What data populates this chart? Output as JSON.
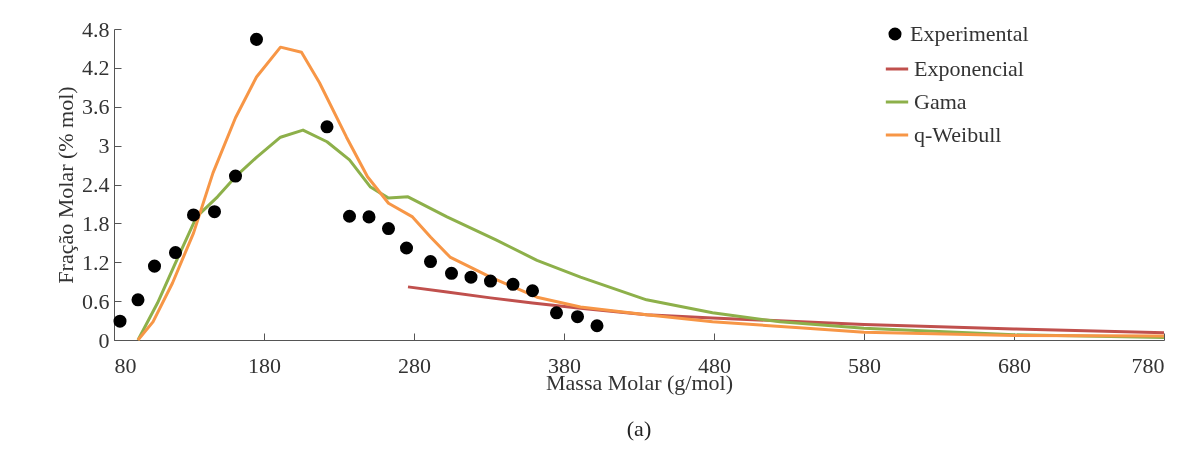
{
  "chart_data": {
    "type": "line",
    "xlabel": "Massa Molar (g/mol)",
    "ylabel": "Fração Molar (% mol)",
    "annotations": [
      "(a)"
    ],
    "xlim": [
      80,
      780
    ],
    "xticks": [
      80,
      180,
      280,
      380,
      480,
      580,
      680,
      780
    ],
    "ylim": [
      0,
      4.8
    ],
    "yticks": [
      0,
      0.6,
      1.2,
      1.8,
      2.4,
      3,
      3.6,
      4.2,
      4.8
    ],
    "grid": false,
    "legend": "top right",
    "line_style": "solid",
    "series": [
      {
        "name": "Experimental",
        "type": "scatter",
        "marker": "circle",
        "color": "#000000",
        "x": [
          84,
          96,
          107,
          121,
          133,
          147,
          161,
          175,
          222,
          237,
          250,
          263,
          275,
          291,
          305,
          318,
          331,
          346,
          359,
          375,
          389,
          402
        ],
        "values": [
          0.29,
          0.62,
          1.14,
          1.35,
          1.93,
          1.98,
          2.53,
          4.64,
          3.29,
          1.91,
          1.9,
          1.72,
          1.42,
          1.21,
          1.03,
          0.97,
          0.91,
          0.86,
          0.76,
          0.42,
          0.36,
          0.22
        ]
      },
      {
        "name": "Exponencial",
        "type": "line",
        "color": "#c0504d",
        "x": [
          276,
          302,
          331,
          359,
          391,
          435,
          479,
          580,
          680,
          780
        ],
        "values": [
          0.82,
          0.74,
          0.65,
          0.57,
          0.49,
          0.39,
          0.34,
          0.24,
          0.17,
          0.11
        ]
      },
      {
        "name": "Gama",
        "type": "line",
        "color": "#8db04a",
        "x": [
          96,
          109,
          121,
          135,
          149,
          161,
          175,
          191,
          206,
          222,
          237,
          251,
          263,
          276,
          302,
          335,
          362,
          391,
          435,
          479,
          524,
          580,
          680,
          780
        ],
        "values": [
          0,
          0.57,
          1.19,
          1.9,
          2.21,
          2.52,
          2.82,
          3.13,
          3.24,
          3.06,
          2.78,
          2.36,
          2.19,
          2.21,
          1.9,
          1.54,
          1.23,
          0.97,
          0.62,
          0.42,
          0.28,
          0.18,
          0.08,
          0.04
        ]
      },
      {
        "name": "q-Weibull",
        "type": "line",
        "color": "#f79646",
        "x": [
          96,
          106,
          119,
          133,
          146,
          161,
          175,
          191,
          205,
          217,
          235,
          249,
          263,
          279,
          291,
          304,
          331,
          362,
          391,
          435,
          479,
          537,
          580,
          680,
          780
        ],
        "values": [
          0,
          0.28,
          0.88,
          1.65,
          2.58,
          3.43,
          4.06,
          4.52,
          4.44,
          3.97,
          3.13,
          2.52,
          2.11,
          1.9,
          1.59,
          1.28,
          0.97,
          0.66,
          0.51,
          0.39,
          0.28,
          0.19,
          0.12,
          0.07,
          0.06
        ]
      }
    ]
  }
}
